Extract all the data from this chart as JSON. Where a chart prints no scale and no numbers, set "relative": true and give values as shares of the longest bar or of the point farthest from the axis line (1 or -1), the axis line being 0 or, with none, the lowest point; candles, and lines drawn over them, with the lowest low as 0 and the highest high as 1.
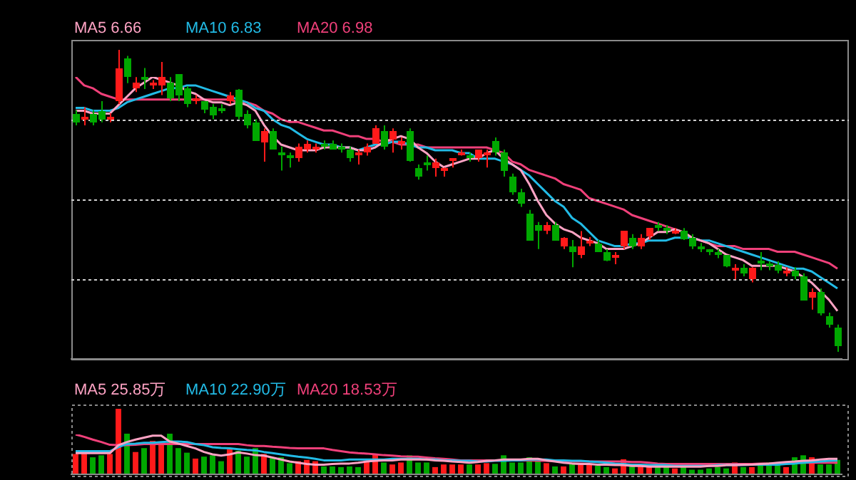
{
  "chart_data": [
    {
      "type": "candlestick",
      "relative": true,
      "grid": "y",
      "categories": [
        null,
        null,
        null,
        null,
        null,
        null,
        null,
        null,
        null,
        null,
        null,
        null,
        null,
        null,
        null,
        null,
        null,
        null,
        null,
        null,
        null,
        null,
        null,
        null,
        null,
        null,
        null,
        null,
        null,
        null,
        null,
        null,
        null,
        null,
        null,
        null,
        null,
        null,
        null,
        null,
        null,
        null,
        null,
        null,
        null,
        null,
        null,
        null,
        null,
        null,
        null,
        null,
        null,
        null,
        null,
        null,
        null,
        null,
        null,
        null,
        null,
        null,
        null,
        null,
        null,
        null,
        null,
        null,
        null,
        null,
        null,
        null,
        null,
        null,
        null,
        null,
        null,
        null,
        null,
        null,
        null,
        null,
        null,
        null,
        null,
        null,
        null,
        null,
        null,
        null
      ],
      "ohlc": [
        [
          0.79,
          0.8,
          0.75,
          0.76
        ],
        [
          0.77,
          0.81,
          0.75,
          0.78
        ],
        [
          0.79,
          0.8,
          0.75,
          0.76
        ],
        [
          0.8,
          0.83,
          0.76,
          0.77
        ],
        [
          0.77,
          0.79,
          0.76,
          0.78
        ],
        [
          0.83,
          1.0,
          0.82,
          0.94
        ],
        [
          0.97,
          0.98,
          0.89,
          0.91
        ],
        [
          0.87,
          0.91,
          0.86,
          0.89
        ],
        [
          0.91,
          0.94,
          0.87,
          0.9
        ],
        [
          0.88,
          0.9,
          0.87,
          0.89
        ],
        [
          0.88,
          0.96,
          0.85,
          0.91
        ],
        [
          0.89,
          0.91,
          0.83,
          0.84
        ],
        [
          0.92,
          0.92,
          0.83,
          0.85
        ],
        [
          0.87,
          0.88,
          0.81,
          0.82
        ],
        [
          0.83,
          0.85,
          0.82,
          0.84
        ],
        [
          0.83,
          0.83,
          0.79,
          0.8
        ],
        [
          0.81,
          0.82,
          0.77,
          0.78
        ],
        [
          0.8,
          0.82,
          0.79,
          0.8
        ],
        [
          0.83,
          0.86,
          0.82,
          0.85
        ],
        [
          0.87,
          0.87,
          0.77,
          0.78
        ],
        [
          0.79,
          0.8,
          0.74,
          0.75
        ],
        [
          0.76,
          0.77,
          0.7,
          0.7
        ],
        [
          0.69,
          0.74,
          0.63,
          0.73
        ],
        [
          0.73,
          0.74,
          0.67,
          0.67
        ],
        [
          0.66,
          0.68,
          0.6,
          0.65
        ],
        [
          0.65,
          0.66,
          0.61,
          0.64
        ],
        [
          0.64,
          0.69,
          0.63,
          0.68
        ],
        [
          0.67,
          0.7,
          0.66,
          0.69
        ],
        [
          0.67,
          0.69,
          0.66,
          0.68
        ],
        [
          0.69,
          0.7,
          0.67,
          0.68
        ],
        [
          0.69,
          0.7,
          0.67,
          0.67
        ],
        [
          0.68,
          0.69,
          0.66,
          0.67
        ],
        [
          0.67,
          0.68,
          0.63,
          0.64
        ],
        [
          0.65,
          0.67,
          0.62,
          0.66
        ],
        [
          0.66,
          0.69,
          0.65,
          0.68
        ],
        [
          0.69,
          0.75,
          0.69,
          0.74
        ],
        [
          0.73,
          0.75,
          0.67,
          0.68
        ],
        [
          0.7,
          0.74,
          0.66,
          0.73
        ],
        [
          0.69,
          0.71,
          0.67,
          0.7
        ],
        [
          0.73,
          0.74,
          0.63,
          0.63
        ],
        [
          0.61,
          0.62,
          0.57,
          0.58
        ],
        [
          0.63,
          0.65,
          0.6,
          0.62
        ],
        [
          0.61,
          0.64,
          0.58,
          0.63
        ],
        [
          0.6,
          0.61,
          0.58,
          0.61
        ],
        [
          0.63,
          0.64,
          0.61,
          0.64
        ],
        [
          0.65,
          0.67,
          0.65,
          0.66
        ],
        [
          0.65,
          0.66,
          0.63,
          0.64
        ],
        [
          0.64,
          0.67,
          0.63,
          0.67
        ],
        [
          0.65,
          0.67,
          0.61,
          0.66
        ],
        [
          0.7,
          0.71,
          0.65,
          0.66
        ],
        [
          0.66,
          0.67,
          0.58,
          0.6
        ],
        [
          0.58,
          0.59,
          0.52,
          0.53
        ],
        [
          0.53,
          0.54,
          0.48,
          0.49
        ],
        [
          0.46,
          0.47,
          0.37,
          0.37
        ],
        [
          0.42,
          0.43,
          0.34,
          0.4
        ],
        [
          0.4,
          0.43,
          0.39,
          0.42
        ],
        [
          0.42,
          0.43,
          0.37,
          0.37
        ],
        [
          0.35,
          0.38,
          0.34,
          0.38
        ],
        [
          0.35,
          0.37,
          0.28,
          0.33
        ],
        [
          0.32,
          0.4,
          0.31,
          0.35
        ],
        [
          0.36,
          0.38,
          0.35,
          0.37
        ],
        [
          0.36,
          0.37,
          0.33,
          0.33
        ],
        [
          0.33,
          0.34,
          0.3,
          0.3
        ],
        [
          0.31,
          0.33,
          0.29,
          0.32
        ],
        [
          0.35,
          0.4,
          0.34,
          0.4
        ],
        [
          0.38,
          0.39,
          0.34,
          0.35
        ],
        [
          0.35,
          0.39,
          0.34,
          0.38
        ],
        [
          0.38,
          0.41,
          0.37,
          0.41
        ],
        [
          0.42,
          0.43,
          0.4,
          0.41
        ],
        [
          0.41,
          0.42,
          0.39,
          0.4
        ],
        [
          0.39,
          0.41,
          0.39,
          0.4
        ],
        [
          0.4,
          0.41,
          0.37,
          0.37
        ],
        [
          0.38,
          0.39,
          0.34,
          0.35
        ],
        [
          0.35,
          0.36,
          0.33,
          0.34
        ],
        [
          0.34,
          0.34,
          0.32,
          0.33
        ],
        [
          0.33,
          0.34,
          0.31,
          0.32
        ],
        [
          0.32,
          0.32,
          0.28,
          0.28
        ],
        [
          0.27,
          0.29,
          0.24,
          0.28
        ],
        [
          0.28,
          0.29,
          0.25,
          0.26
        ],
        [
          0.24,
          0.28,
          0.23,
          0.28
        ],
        [
          0.3,
          0.33,
          0.27,
          0.29
        ],
        [
          0.29,
          0.3,
          0.27,
          0.29
        ],
        [
          0.29,
          0.3,
          0.26,
          0.27
        ],
        [
          0.26,
          0.28,
          0.25,
          0.27
        ],
        [
          0.27,
          0.28,
          0.24,
          0.25
        ],
        [
          0.25,
          0.26,
          0.17,
          0.17
        ],
        [
          0.18,
          0.21,
          0.14,
          0.2
        ],
        [
          0.2,
          0.21,
          0.12,
          0.13
        ],
        [
          0.12,
          0.13,
          0.08,
          0.09
        ],
        [
          0.08,
          0.09,
          0.0,
          0.02
        ]
      ],
      "colors": [
        "#00a800",
        "#ff1a1a",
        "#00a800",
        "#00a800",
        "#ff1a1a",
        "#ff1a1a",
        "#00a800",
        "#ff1a1a",
        "#00a800",
        "#ff1a1a",
        "#ff1a1a",
        "#00a800",
        "#00a800",
        "#00a800",
        "#ff1a1a",
        "#00a800",
        "#00a800",
        "#00a800",
        "#ff1a1a",
        "#00a800",
        "#00a800",
        "#00a800",
        "#ff1a1a",
        "#00a800",
        "#00a800",
        "#00a800",
        "#ff1a1a",
        "#ff1a1a",
        "#ff1a1a",
        "#00a800",
        "#00a800",
        "#00a800",
        "#00a800",
        "#ff1a1a",
        "#ff1a1a",
        "#ff1a1a",
        "#00a800",
        "#ff1a1a",
        "#ff1a1a",
        "#00a800",
        "#00a800",
        "#00a800",
        "#ff1a1a",
        "#ff1a1a",
        "#ff1a1a",
        "#ff1a1a",
        "#00a800",
        "#ff1a1a",
        "#ff1a1a",
        "#00a800",
        "#00a800",
        "#00a800",
        "#00a800",
        "#00a800",
        "#00a800",
        "#ff1a1a",
        "#00a800",
        "#ff1a1a",
        "#00a800",
        "#ff1a1a",
        "#ff1a1a",
        "#00a800",
        "#00a800",
        "#ff1a1a",
        "#ff1a1a",
        "#00a800",
        "#ff1a1a",
        "#ff1a1a",
        "#00a800",
        "#00a800",
        "#ff1a1a",
        "#00a800",
        "#00a800",
        "#00a800",
        "#00a800",
        "#00a800",
        "#00a800",
        "#ff1a1a",
        "#00a800",
        "#ff1a1a",
        "#00a800",
        "#00a800",
        "#00a800",
        "#ff1a1a",
        "#00a800",
        "#00a800",
        "#ff1a1a",
        "#00a800",
        "#00a800",
        "#00a800"
      ]
    },
    {
      "type": "line",
      "relative": true,
      "categories": [
        null,
        null,
        null,
        null,
        null,
        null,
        null,
        null,
        null,
        null,
        null,
        null,
        null,
        null,
        null,
        null,
        null,
        null,
        null,
        null,
        null,
        null,
        null,
        null,
        null,
        null,
        null,
        null,
        null,
        null,
        null,
        null,
        null,
        null,
        null,
        null,
        null,
        null,
        null,
        null,
        null,
        null,
        null,
        null,
        null,
        null,
        null,
        null,
        null,
        null,
        null,
        null,
        null,
        null,
        null,
        null,
        null,
        null,
        null,
        null,
        null,
        null,
        null,
        null,
        null,
        null,
        null,
        null,
        null,
        null,
        null,
        null,
        null,
        null,
        null,
        null,
        null,
        null,
        null,
        null,
        null,
        null,
        null,
        null,
        null,
        null,
        null,
        null,
        null,
        null
      ],
      "series": [
        {
          "name": "MA5 6.66",
          "color": "#ffa3c4",
          "values": [
            0.88,
            0.88,
            0.87,
            0.87,
            0.87,
            0.9,
            0.93,
            0.96,
            0.98,
            1.0,
            0.99,
            0.98,
            0.97,
            0.95,
            0.94,
            0.92,
            0.91,
            0.91,
            0.9,
            0.91,
            0.9,
            0.88,
            0.83,
            0.79,
            0.76,
            0.75,
            0.74,
            0.74,
            0.74,
            0.75,
            0.75,
            0.75,
            0.75,
            0.74,
            0.74,
            0.75,
            0.77,
            0.78,
            0.79,
            0.78,
            0.75,
            0.73,
            0.7,
            0.68,
            0.69,
            0.7,
            0.71,
            0.71,
            0.73,
            0.74,
            0.71,
            0.69,
            0.67,
            0.62,
            0.56,
            0.51,
            0.48,
            0.46,
            0.45,
            0.43,
            0.42,
            0.41,
            0.39,
            0.39,
            0.39,
            0.4,
            0.41,
            0.43,
            0.45,
            0.45,
            0.46,
            0.45,
            0.43,
            0.42,
            0.41,
            0.39,
            0.37,
            0.36,
            0.35,
            0.33,
            0.33,
            0.33,
            0.33,
            0.32,
            0.31,
            0.29,
            0.27,
            0.24,
            0.21,
            0.17
          ]
        },
        {
          "name": "MA10 6.83",
          "color": "#22bbe6",
          "values": [
            0.89,
            0.89,
            0.88,
            0.88,
            0.88,
            0.89,
            0.91,
            0.92,
            0.93,
            0.94,
            0.95,
            0.96,
            0.96,
            0.97,
            0.97,
            0.96,
            0.95,
            0.94,
            0.93,
            0.92,
            0.91,
            0.89,
            0.88,
            0.85,
            0.83,
            0.82,
            0.8,
            0.78,
            0.77,
            0.76,
            0.76,
            0.75,
            0.75,
            0.74,
            0.75,
            0.76,
            0.76,
            0.77,
            0.77,
            0.76,
            0.75,
            0.75,
            0.74,
            0.74,
            0.74,
            0.73,
            0.73,
            0.71,
            0.71,
            0.71,
            0.7,
            0.69,
            0.67,
            0.65,
            0.62,
            0.59,
            0.56,
            0.54,
            0.5,
            0.48,
            0.45,
            0.42,
            0.41,
            0.4,
            0.4,
            0.41,
            0.41,
            0.42,
            0.42,
            0.42,
            0.43,
            0.43,
            0.43,
            0.42,
            0.42,
            0.41,
            0.4,
            0.39,
            0.38,
            0.37,
            0.36,
            0.35,
            0.34,
            0.33,
            0.32,
            0.32,
            0.31,
            0.29,
            0.27,
            0.25
          ]
        },
        {
          "name": "MA20 6.98",
          "color": "#f0407a",
          "values": [
            1.0,
            0.97,
            0.96,
            0.94,
            0.93,
            0.92,
            0.92,
            0.92,
            0.92,
            0.92,
            0.92,
            0.92,
            0.92,
            0.92,
            0.92,
            0.92,
            0.92,
            0.92,
            0.92,
            0.91,
            0.91,
            0.9,
            0.88,
            0.87,
            0.85,
            0.84,
            0.84,
            0.83,
            0.82,
            0.81,
            0.81,
            0.8,
            0.79,
            0.79,
            0.78,
            0.78,
            0.77,
            0.77,
            0.76,
            0.76,
            0.76,
            0.75,
            0.75,
            0.75,
            0.75,
            0.75,
            0.75,
            0.75,
            0.75,
            0.74,
            0.73,
            0.7,
            0.69,
            0.67,
            0.66,
            0.65,
            0.64,
            0.62,
            0.61,
            0.6,
            0.57,
            0.56,
            0.55,
            0.54,
            0.53,
            0.51,
            0.5,
            0.49,
            0.48,
            0.47,
            0.46,
            0.45,
            0.43,
            0.42,
            0.41,
            0.4,
            0.4,
            0.4,
            0.39,
            0.39,
            0.39,
            0.39,
            0.38,
            0.38,
            0.38,
            0.37,
            0.36,
            0.35,
            0.34,
            0.32
          ]
        }
      ]
    },
    {
      "type": "bar",
      "relative": true,
      "categories": [
        null,
        null,
        null,
        null,
        null,
        null,
        null,
        null,
        null,
        null,
        null,
        null,
        null,
        null,
        null,
        null,
        null,
        null,
        null,
        null,
        null,
        null,
        null,
        null,
        null,
        null,
        null,
        null,
        null,
        null,
        null,
        null,
        null,
        null,
        null,
        null,
        null,
        null,
        null,
        null,
        null,
        null,
        null,
        null,
        null,
        null,
        null,
        null,
        null,
        null,
        null,
        null,
        null,
        null,
        null,
        null,
        null,
        null,
        null,
        null,
        null,
        null,
        null,
        null,
        null,
        null,
        null,
        null,
        null,
        null,
        null,
        null,
        null,
        null,
        null,
        null,
        null,
        null,
        null,
        null,
        null,
        null,
        null,
        null,
        null,
        null,
        null,
        null,
        null,
        null
      ],
      "values": [
        0.31,
        0.31,
        0.26,
        0.29,
        0.31,
        1,
        0.62,
        0.34,
        0.4,
        0.51,
        0.47,
        0.62,
        0.4,
        0.33,
        0.24,
        0.27,
        0.29,
        0.2,
        0.38,
        0.36,
        0.27,
        0.4,
        0.31,
        0.26,
        0.26,
        0.17,
        0.2,
        0.22,
        0.2,
        0.12,
        0.12,
        0.11,
        0.12,
        0.11,
        0.2,
        0.31,
        0.18,
        0.15,
        0.18,
        0.29,
        0.18,
        0.18,
        0.11,
        0.15,
        0.15,
        0.15,
        0.15,
        0.15,
        0.17,
        0.16,
        0.29,
        0.18,
        0.18,
        0.26,
        0.22,
        0.17,
        0.12,
        0.12,
        0.18,
        0.15,
        0.15,
        0.13,
        0.11,
        0.09,
        0.23,
        0.12,
        0.12,
        0.12,
        0.15,
        0.11,
        0.09,
        0.11,
        0.07,
        0.07,
        0.09,
        0.11,
        0.09,
        0.18,
        0.11,
        0.11,
        0.15,
        0.18,
        0.15,
        0.11,
        0.26,
        0.29,
        0.26,
        0.15,
        0.15,
        0.22
      ],
      "colors": [
        "#ff1a1a",
        "#ff1a1a",
        "#00a800",
        "#00a800",
        "#ff1a1a",
        "#ff1a1a",
        "#00a800",
        "#ff1a1a",
        "#00a800",
        "#ff1a1a",
        "#ff1a1a",
        "#00a800",
        "#00a800",
        "#00a800",
        "#ff1a1a",
        "#00a800",
        "#00a800",
        "#00a800",
        "#ff1a1a",
        "#00a800",
        "#00a800",
        "#00a800",
        "#ff1a1a",
        "#00a800",
        "#00a800",
        "#00a800",
        "#ff1a1a",
        "#ff1a1a",
        "#ff1a1a",
        "#00a800",
        "#00a800",
        "#00a800",
        "#00a800",
        "#00a800",
        "#ff1a1a",
        "#ff1a1a",
        "#00a800",
        "#ff1a1a",
        "#ff1a1a",
        "#00a800",
        "#00a800",
        "#00a800",
        "#ff1a1a",
        "#ff1a1a",
        "#ff1a1a",
        "#ff1a1a",
        "#00a800",
        "#ff1a1a",
        "#ff1a1a",
        "#00a800",
        "#00a800",
        "#00a800",
        "#00a800",
        "#00a800",
        "#00a800",
        "#ff1a1a",
        "#00a800",
        "#ff1a1a",
        "#00a800",
        "#ff1a1a",
        "#ff1a1a",
        "#00a800",
        "#00a800",
        "#ff1a1a",
        "#ff1a1a",
        "#00a800",
        "#ff1a1a",
        "#ff1a1a",
        "#00a800",
        "#00a800",
        "#ff1a1a",
        "#00a800",
        "#00a800",
        "#00a800",
        "#00a800",
        "#00a800",
        "#00a800",
        "#ff1a1a",
        "#00a800",
        "#ff1a1a",
        "#00a800",
        "#00a800",
        "#00a800",
        "#ff1a1a",
        "#00a800",
        "#00a800",
        "#ff1a1a",
        "#00a800",
        "#00a800",
        "#00a800"
      ]
    },
    {
      "type": "line",
      "relative": true,
      "categories": [
        null,
        null,
        null,
        null,
        null,
        null,
        null,
        null,
        null,
        null,
        null,
        null,
        null,
        null,
        null,
        null,
        null,
        null,
        null,
        null,
        null,
        null,
        null,
        null,
        null,
        null,
        null,
        null,
        null,
        null,
        null,
        null,
        null,
        null,
        null,
        null,
        null,
        null,
        null,
        null,
        null,
        null,
        null,
        null,
        null,
        null,
        null,
        null,
        null,
        null,
        null,
        null,
        null,
        null,
        null,
        null,
        null,
        null,
        null,
        null,
        null,
        null,
        null,
        null,
        null,
        null,
        null,
        null,
        null,
        null,
        null,
        null,
        null,
        null,
        null,
        null,
        null,
        null,
        null,
        null,
        null,
        null,
        null,
        null,
        null,
        null,
        null,
        null,
        null,
        null
      ],
      "series": [
        {
          "name": "MA5 25.85万",
          "color": "#ffa3c4",
          "values": [
            0.53,
            0.53,
            0.53,
            0.53,
            0.53,
            0.73,
            0.81,
            0.87,
            0.92,
            0.97,
            0.97,
            0.82,
            0.77,
            0.71,
            0.65,
            0.56,
            0.5,
            0.47,
            0.5,
            0.55,
            0.52,
            0.48,
            0.47,
            0.42,
            0.37,
            0.32,
            0.29,
            0.26,
            0.24,
            0.24,
            0.26,
            0.27,
            0.27,
            0.29,
            0.32,
            0.34,
            0.35,
            0.35,
            0.37,
            0.37,
            0.37,
            0.37,
            0.35,
            0.34,
            0.32,
            0.31,
            0.29,
            0.31,
            0.34,
            0.35,
            0.37,
            0.37,
            0.37,
            0.39,
            0.39,
            0.35,
            0.32,
            0.29,
            0.27,
            0.26,
            0.26,
            0.24,
            0.24,
            0.23,
            0.23,
            0.21,
            0.21,
            0.19,
            0.19,
            0.19,
            0.19,
            0.19,
            0.19,
            0.19,
            0.21,
            0.21,
            0.23,
            0.23,
            0.24,
            0.24,
            0.26,
            0.27,
            0.29,
            0.31,
            0.32,
            0.34,
            0.35,
            0.37,
            0.39,
            0.39
          ]
        },
        {
          "name": "MA10 22.90万",
          "color": "#22bbe6",
          "values": [
            0.58,
            0.58,
            0.58,
            0.58,
            0.58,
            0.68,
            0.76,
            0.77,
            0.79,
            0.79,
            0.81,
            0.82,
            0.82,
            0.81,
            0.76,
            0.73,
            0.68,
            0.66,
            0.65,
            0.63,
            0.61,
            0.6,
            0.56,
            0.53,
            0.5,
            0.47,
            0.44,
            0.42,
            0.39,
            0.35,
            0.35,
            0.35,
            0.37,
            0.37,
            0.37,
            0.37,
            0.37,
            0.39,
            0.39,
            0.39,
            0.39,
            0.37,
            0.37,
            0.35,
            0.35,
            0.34,
            0.34,
            0.32,
            0.32,
            0.34,
            0.34,
            0.35,
            0.35,
            0.37,
            0.37,
            0.37,
            0.35,
            0.35,
            0.34,
            0.34,
            0.32,
            0.31,
            0.29,
            0.27,
            0.26,
            0.24,
            0.24,
            0.23,
            0.23,
            0.23,
            0.21,
            0.21,
            0.21,
            0.21,
            0.21,
            0.23,
            0.23,
            0.23,
            0.23,
            0.24,
            0.24,
            0.24,
            0.24,
            0.26,
            0.27,
            0.29,
            0.31,
            0.32,
            0.34,
            0.35
          ]
        },
        {
          "name": "MA20 18.53万",
          "color": "#f0407a",
          "values": [
            1,
            0.94,
            0.87,
            0.81,
            0.74,
            0.73,
            0.73,
            0.74,
            0.76,
            0.76,
            0.76,
            0.76,
            0.76,
            0.76,
            0.76,
            0.76,
            0.76,
            0.76,
            0.76,
            0.76,
            0.73,
            0.71,
            0.71,
            0.69,
            0.68,
            0.66,
            0.65,
            0.65,
            0.65,
            0.65,
            0.61,
            0.58,
            0.55,
            0.53,
            0.52,
            0.5,
            0.48,
            0.47,
            0.45,
            0.44,
            0.44,
            0.42,
            0.4,
            0.39,
            0.37,
            0.35,
            0.35,
            0.35,
            0.35,
            0.35,
            0.35,
            0.35,
            0.35,
            0.35,
            0.34,
            0.34,
            0.34,
            0.32,
            0.32,
            0.32,
            0.32,
            0.32,
            0.32,
            0.32,
            0.32,
            0.31,
            0.31,
            0.29,
            0.27,
            0.26,
            0.26,
            0.26,
            0.26,
            0.26,
            0.26,
            0.26,
            0.26,
            0.26,
            0.26,
            0.26,
            0.27,
            0.27,
            0.27,
            0.27,
            0.29,
            0.29,
            0.29,
            0.29,
            0.29,
            0.29
          ]
        }
      ]
    }
  ]
}
